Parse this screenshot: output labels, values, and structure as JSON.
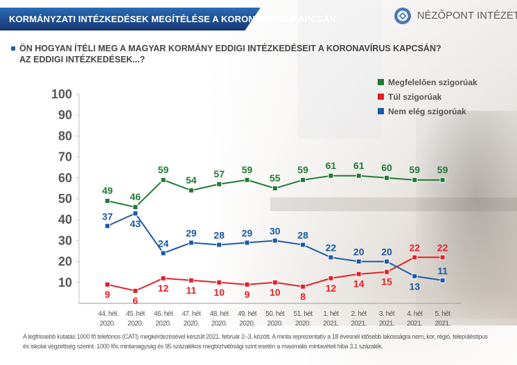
{
  "header": {
    "title": "KORMÁNYZATI INTÉZKEDÉSEK MEGÍTÉLÉSE A KORONAVÍRUS KAPCSÁN",
    "logo_text": "NÉZŐPONT INTÉZET",
    "logo_icon": "nezopont-logo-icon"
  },
  "question": {
    "line1": "ÖN HOGYAN ÍTÉLI MEG A MAGYAR KORMÁNY EDDIGI INTÉZKEDÉSEIT A KORONAVÍRUS KAPCSÁN?",
    "line2": "AZ EDDIGI INTÉZKEDÉSEK...?"
  },
  "colors": {
    "green": "#1f7a35",
    "red": "#e41f26",
    "blue": "#1a5aa6",
    "banner": "#1f4f92"
  },
  "footnote": {
    "line1": "A legfrissebb kutatás 1000 fő telefonos (CATI) megkérdezésével készült 2021. február 2–3. között. A minta reprezentatív a 18 évesnél idősebb lakosságra nem, kor, régió, településtípus",
    "line2": "és iskolai végzettség szerint. 1000 fős mintanagyság és 95 százalékos megbízhatósági szint esetén a maximális mintavételi hiba 3,1 százalék."
  },
  "chart_data": {
    "type": "line",
    "title": "",
    "xlabel": "",
    "ylabel": "",
    "ylim": [
      0,
      100
    ],
    "yticks": [
      10,
      20,
      30,
      40,
      50,
      60,
      70,
      80,
      90,
      100
    ],
    "grid": false,
    "legend_position": "top-right",
    "categories": [
      [
        "44. hét",
        "2020."
      ],
      [
        "45. hét",
        "2020."
      ],
      [
        "46. hét",
        "2020."
      ],
      [
        "47. hét",
        "2020."
      ],
      [
        "48. hét",
        "2020."
      ],
      [
        "49. hét",
        "2020."
      ],
      [
        "50. hét",
        "2020."
      ],
      [
        "51. hét",
        "2020."
      ],
      [
        "1. hét",
        "2021."
      ],
      [
        "2. hét",
        "2021."
      ],
      [
        "3. hét",
        "2021."
      ],
      [
        "4. hét",
        "2021."
      ],
      [
        "5. hét",
        "2021."
      ]
    ],
    "series": [
      {
        "name": "Megfelelően szigorúak",
        "color": "#1f7a35",
        "values": [
          49,
          46,
          59,
          54,
          57,
          59,
          55,
          59,
          61,
          61,
          60,
          59,
          59
        ]
      },
      {
        "name": "Túl szigorúak",
        "color": "#e41f26",
        "values": [
          9,
          6,
          12,
          11,
          10,
          9,
          10,
          8,
          12,
          14,
          15,
          22,
          22
        ]
      },
      {
        "name": "Nem elég szigorúak",
        "color": "#1a5aa6",
        "values": [
          37,
          43,
          24,
          29,
          28,
          29,
          30,
          28,
          22,
          20,
          20,
          13,
          11
        ]
      }
    ]
  }
}
